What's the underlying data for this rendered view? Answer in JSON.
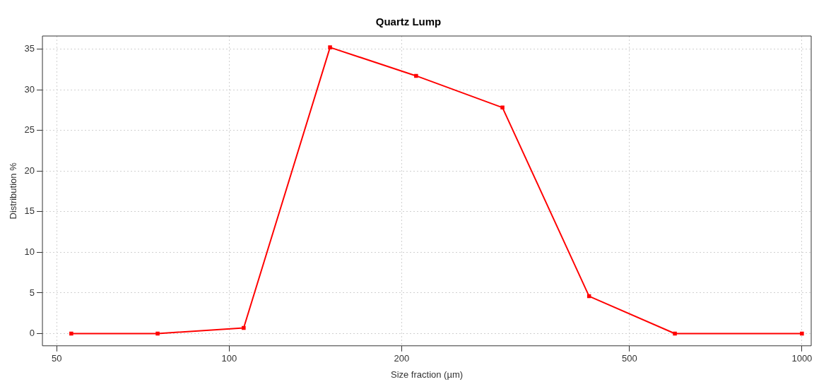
{
  "chart_data": {
    "type": "line",
    "title": "Quartz Lump",
    "xlabel": "Size fraction (µm)",
    "ylabel": "Distribution %",
    "x": [
      53,
      75,
      106,
      150,
      212,
      300,
      425,
      600,
      1000
    ],
    "series": [
      {
        "color": "#ff0000",
        "values": [
          0,
          0,
          0.7,
          35.2,
          31.7,
          27.8,
          4.6,
          0,
          0
        ]
      }
    ],
    "log": "x",
    "xlim": [
      47.2,
      1038
    ],
    "xticks": [
      50,
      100,
      200,
      500,
      1000
    ],
    "ylim": [
      -1.5,
      36.6
    ],
    "yticks": [
      0,
      5,
      10,
      15,
      20,
      25,
      30,
      35
    ],
    "grid": true,
    "legend": false,
    "marker": "square",
    "line_style": "solid"
  }
}
